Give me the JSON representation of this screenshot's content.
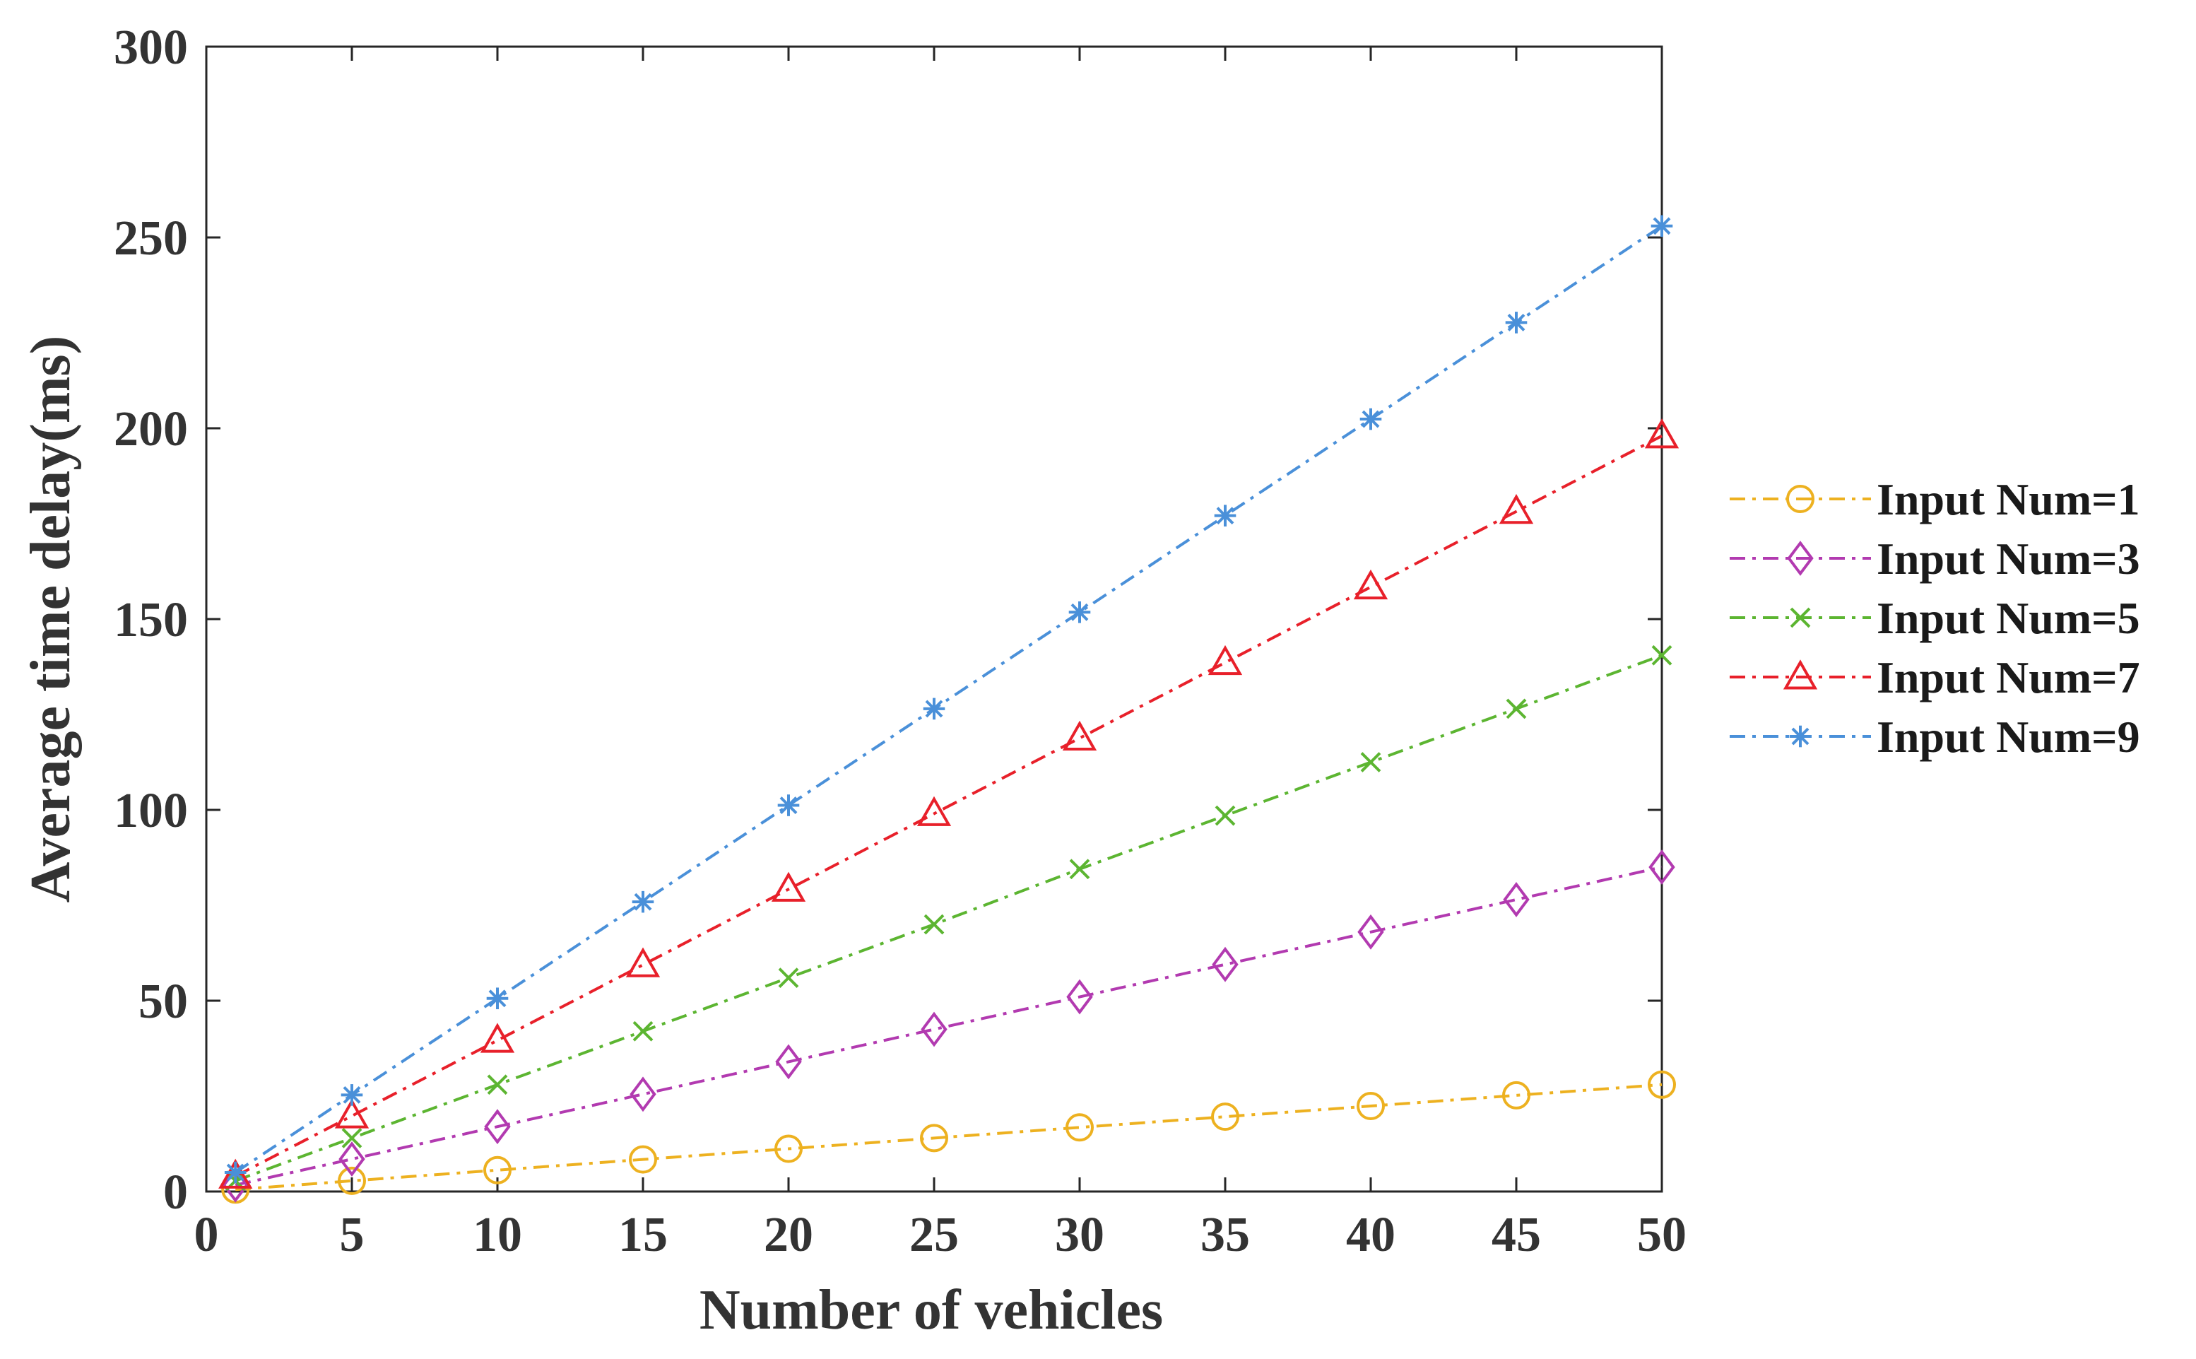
{
  "chart_data": {
    "type": "line",
    "title": "",
    "xlabel": "Number of vehicles",
    "ylabel": "Average time delay(ms)",
    "xlim": [
      0,
      50
    ],
    "ylim": [
      0,
      300
    ],
    "xticks": [
      "0",
      "5",
      "10",
      "15",
      "20",
      "25",
      "30",
      "35",
      "40",
      "45",
      "50"
    ],
    "yticks": [
      "0",
      "50",
      "100",
      "150",
      "200",
      "250",
      "300"
    ],
    "grid": false,
    "legend_position": "right",
    "x": [
      1,
      5,
      10,
      15,
      20,
      25,
      30,
      35,
      40,
      45,
      50
    ],
    "series": [
      {
        "name": "Input Num=1",
        "color": "#EDB120",
        "marker": "circle",
        "values": [
          0.5,
          2.8,
          5.6,
          8.4,
          11.2,
          14,
          16.8,
          19.6,
          22.4,
          25.2,
          28
        ]
      },
      {
        "name": "Input Num=3",
        "color": "#B23AB0",
        "marker": "diamond",
        "values": [
          1.7,
          8.5,
          17,
          25.5,
          34,
          42.5,
          51,
          59.5,
          68,
          76.5,
          85
        ]
      },
      {
        "name": "Input Num=5",
        "color": "#5CB531",
        "marker": "x",
        "values": [
          2.8,
          14,
          28,
          42,
          56,
          70,
          84.5,
          98.5,
          112.5,
          126.5,
          140.5
        ]
      },
      {
        "name": "Input Num=7",
        "color": "#E8202A",
        "marker": "triangle",
        "values": [
          4,
          19.8,
          39.6,
          59.4,
          79.2,
          99,
          118.8,
          138.6,
          158.4,
          178.2,
          198
        ]
      },
      {
        "name": "Input Num=9",
        "color": "#4A90D9",
        "marker": "asterisk",
        "values": [
          5,
          25.3,
          50.6,
          75.9,
          101.2,
          126.5,
          151.8,
          177.1,
          202.4,
          227.7,
          253
        ]
      }
    ]
  }
}
